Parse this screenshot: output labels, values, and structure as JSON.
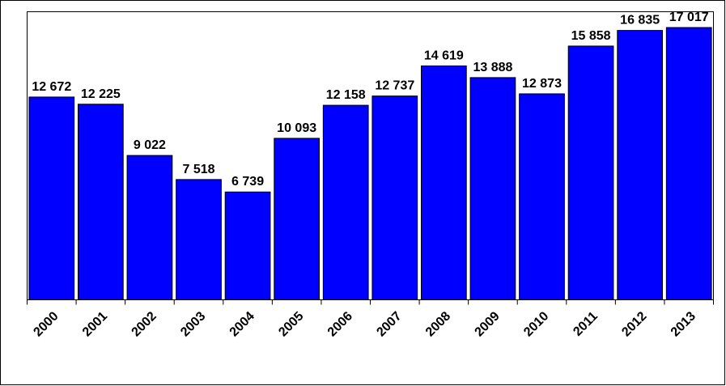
{
  "chart_data": {
    "type": "bar",
    "categories": [
      "2000",
      "2001",
      "2002",
      "2003",
      "2004",
      "2005",
      "2006",
      "2007",
      "2008",
      "2009",
      "2010",
      "2011",
      "2012",
      "2013"
    ],
    "values": [
      12672,
      12225,
      9022,
      7518,
      6739,
      10093,
      12158,
      12737,
      14619,
      13888,
      12873,
      15858,
      16835,
      17017
    ],
    "value_labels": [
      "12 672",
      "12 225",
      "9 022",
      "7 518",
      "6 739",
      "10 093",
      "12 158",
      "12 737",
      "14 619",
      "13 888",
      "12 873",
      "15 858",
      "16 835",
      "17 017"
    ],
    "color": "#0000ff"
  }
}
